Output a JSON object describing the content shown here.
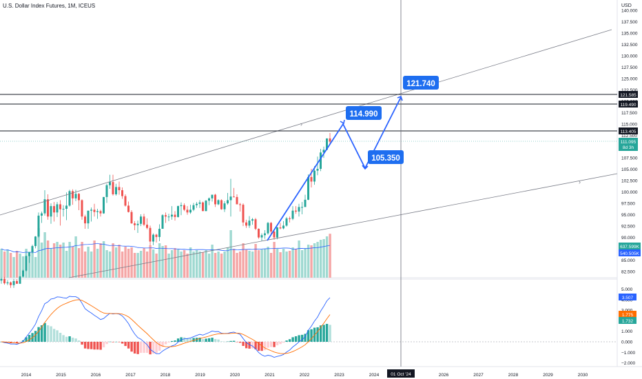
{
  "header": {
    "title": "U.S. Dollar Index Futures, 1M, ICEUS"
  },
  "price_axis": {
    "unit": "USD",
    "ticks": [
      "140.000",
      "137.500",
      "135.000",
      "132.500",
      "130.000",
      "127.500",
      "125.000",
      "122.500",
      "120.000",
      "117.500",
      "115.000",
      "112.500",
      "110.000",
      "107.500",
      "105.000",
      "102.500",
      "100.000",
      "97.500",
      "95.000",
      "92.500",
      "90.000",
      "87.500",
      "85.000",
      "82.500"
    ]
  },
  "osc_axis": {
    "ticks": [
      "5.000",
      "4.000",
      "3.000",
      "2.000",
      "1.000",
      "0.000",
      "−1.000",
      "−2.000"
    ]
  },
  "time_axis": {
    "labels": [
      "2014",
      "2015",
      "2016",
      "2017",
      "2018",
      "2019",
      "2020",
      "2021",
      "2022",
      "2023",
      "2024",
      "2026",
      "2027",
      "2028",
      "2029",
      "2030"
    ],
    "cursor_label": "01 Oct '24"
  },
  "level_labels": {
    "l1": "121.585",
    "l2": "119.490",
    "l3": "113.405",
    "last_price": "111.095",
    "countdown": "8d 3h",
    "vol1": "637.599K",
    "vol2": "540.505K",
    "macd1": "3.507",
    "macd2": "1.775",
    "macd3": "1.732"
  },
  "callouts": {
    "c1": "121.740",
    "c2": "114.990",
    "c3": "105.350"
  },
  "colors": {
    "up": "#26a69a",
    "down": "#ef5350",
    "up_vol": "#9fd9d1",
    "down_vol": "#f5a6a6",
    "accent": "#2962ff",
    "macd_line": "#2962ff",
    "signal_line": "#ff6d00",
    "hline": "#131722",
    "callout_bg": "#1e6ef0",
    "cursor_bg": "#131722",
    "last_bg": "#26a69a",
    "vol2_bg": "#2962ff",
    "signal_bg": "#ff6d00"
  },
  "chart_data": {
    "type": "candlestick",
    "months": 107,
    "start": "2014-01",
    "candles_ohlc": [
      [
        80.5,
        81.2,
        79.8,
        80.9
      ],
      [
        80.9,
        81.3,
        79.6,
        79.9
      ],
      [
        79.9,
        80.6,
        79.5,
        80.1
      ],
      [
        80.1,
        80.3,
        78.9,
        79.5
      ],
      [
        79.5,
        80.9,
        78.9,
        80.4
      ],
      [
        80.4,
        80.8,
        79.8,
        79.8
      ],
      [
        79.8,
        81.5,
        79.8,
        81.4
      ],
      [
        81.4,
        82.9,
        81.3,
        82.7
      ],
      [
        82.7,
        86.0,
        82.5,
        85.9
      ],
      [
        85.9,
        86.8,
        84.4,
        86.8
      ],
      [
        86.8,
        88.4,
        86.5,
        88.1
      ],
      [
        88.1,
        90.3,
        87.6,
        90.2
      ],
      [
        90.2,
        95.5,
        90.0,
        94.8
      ],
      [
        94.8,
        95.7,
        93.2,
        95.3
      ],
      [
        95.3,
        100.4,
        94.8,
        98.4
      ],
      [
        98.4,
        99.5,
        93.9,
        94.6
      ],
      [
        94.6,
        97.5,
        93.0,
        96.9
      ],
      [
        96.9,
        97.8,
        93.5,
        95.5
      ],
      [
        95.5,
        97.8,
        94.5,
        97.3
      ],
      [
        97.3,
        98.2,
        92.6,
        96.2
      ],
      [
        96.2,
        97.1,
        94.6,
        96.3
      ],
      [
        96.3,
        99.9,
        93.8,
        97.0
      ],
      [
        97.0,
        100.5,
        96.8,
        100.2
      ],
      [
        100.2,
        100.6,
        97.2,
        98.6
      ],
      [
        98.6,
        100.5,
        98.0,
        99.6
      ],
      [
        99.6,
        99.8,
        96.0,
        98.2
      ],
      [
        98.2,
        98.4,
        93.9,
        94.6
      ],
      [
        94.6,
        95.0,
        91.9,
        93.1
      ],
      [
        93.1,
        95.7,
        91.9,
        95.9
      ],
      [
        95.9,
        96.6,
        93.5,
        96.1
      ],
      [
        96.1,
        97.4,
        94.6,
        95.6
      ],
      [
        95.6,
        96.3,
        94.1,
        95.8
      ],
      [
        95.8,
        96.1,
        94.6,
        95.3
      ],
      [
        95.3,
        98.9,
        95.2,
        98.9
      ],
      [
        98.9,
        101.8,
        97.6,
        101.5
      ],
      [
        101.5,
        103.8,
        100.7,
        102.2
      ],
      [
        102.2,
        103.8,
        99.2,
        99.5
      ],
      [
        99.5,
        101.8,
        99.2,
        101.1
      ],
      [
        101.1,
        102.3,
        99.4,
        100.4
      ],
      [
        100.4,
        101.0,
        98.5,
        99.1
      ],
      [
        99.1,
        99.5,
        96.8,
        97.0
      ],
      [
        97.0,
        97.9,
        95.5,
        95.6
      ],
      [
        95.6,
        96.0,
        93.0,
        93.1
      ],
      [
        93.1,
        93.6,
        91.6,
        92.7
      ],
      [
        92.7,
        93.7,
        91.0,
        93.0
      ],
      [
        93.0,
        95.1,
        92.5,
        94.6
      ],
      [
        94.6,
        95.2,
        92.5,
        92.8
      ],
      [
        92.8,
        94.2,
        91.8,
        92.1
      ],
      [
        92.1,
        92.6,
        88.2,
        89.1
      ],
      [
        89.1,
        90.9,
        88.3,
        90.6
      ],
      [
        90.6,
        90.8,
        88.9,
        90.1
      ],
      [
        90.1,
        92.9,
        89.2,
        91.9
      ],
      [
        91.9,
        95.1,
        91.9,
        94.9
      ],
      [
        94.9,
        95.5,
        93.2,
        94.6
      ],
      [
        94.6,
        95.2,
        93.6,
        94.6
      ],
      [
        94.6,
        96.9,
        93.9,
        95.0
      ],
      [
        95.0,
        95.8,
        93.7,
        94.5
      ],
      [
        94.5,
        97.0,
        94.4,
        96.9
      ],
      [
        96.9,
        97.7,
        94.9,
        97.1
      ],
      [
        97.1,
        97.5,
        95.8,
        96.1
      ],
      [
        96.1,
        96.9,
        95.0,
        95.5
      ],
      [
        95.5,
        97.2,
        95.2,
        96.1
      ],
      [
        96.1,
        97.6,
        95.8,
        97.1
      ],
      [
        97.1,
        97.8,
        96.5,
        97.4
      ],
      [
        97.4,
        98.2,
        96.5,
        97.7
      ],
      [
        97.7,
        97.9,
        95.8,
        95.8
      ],
      [
        95.8,
        98.2,
        95.8,
        98.1
      ],
      [
        98.1,
        98.8,
        97.1,
        98.6
      ],
      [
        98.6,
        99.4,
        97.9,
        99.4
      ],
      [
        99.4,
        99.6,
        96.7,
        97.3
      ],
      [
        97.3,
        98.4,
        97.1,
        98.2
      ],
      [
        98.2,
        98.4,
        96.1,
        96.2
      ],
      [
        96.2,
        98.0,
        95.6,
        97.5
      ],
      [
        97.5,
        99.8,
        97.2,
        98.2
      ],
      [
        98.2,
        102.9,
        94.6,
        99.0
      ],
      [
        99.0,
        100.9,
        98.9,
        98.9
      ],
      [
        98.9,
        99.5,
        97.3,
        97.3
      ],
      [
        97.3,
        97.6,
        95.7,
        97.2
      ],
      [
        97.2,
        97.5,
        92.5,
        93.3
      ],
      [
        93.3,
        93.9,
        92.1,
        92.6
      ],
      [
        92.6,
        94.7,
        92.1,
        93.7
      ],
      [
        93.7,
        94.3,
        92.8,
        94.0
      ],
      [
        94.0,
        94.3,
        91.6,
        91.9
      ],
      [
        91.9,
        92.0,
        89.7,
        90.0
      ],
      [
        90.0,
        90.9,
        89.2,
        90.5
      ],
      [
        90.5,
        91.6,
        89.7,
        90.9
      ],
      [
        90.9,
        93.4,
        90.6,
        93.2
      ],
      [
        93.2,
        93.4,
        90.8,
        91.3
      ],
      [
        91.3,
        91.4,
        89.5,
        90.0
      ],
      [
        90.0,
        92.3,
        89.6,
        92.2
      ],
      [
        92.2,
        93.2,
        91.8,
        92.0
      ],
      [
        92.0,
        93.6,
        91.8,
        92.6
      ],
      [
        92.6,
        94.5,
        92.4,
        94.2
      ],
      [
        94.2,
        94.6,
        93.3,
        94.1
      ],
      [
        94.1,
        96.9,
        93.8,
        95.9
      ],
      [
        95.9,
        96.9,
        95.2,
        95.7
      ],
      [
        95.7,
        97.4,
        94.6,
        96.7
      ],
      [
        96.7,
        97.8,
        95.1,
        96.7
      ],
      [
        96.7,
        99.4,
        97.5,
        98.3
      ],
      [
        98.3,
        103.9,
        98.2,
        103.3
      ],
      [
        103.3,
        105.1,
        101.0,
        102.3
      ],
      [
        102.3,
        105.7,
        101.6,
        104.7
      ],
      [
        104.7,
        107.8,
        103.7,
        105.1
      ],
      [
        105.1,
        109.5,
        104.6,
        108.7
      ],
      [
        108.7,
        110.0,
        107.5,
        109.3
      ],
      [
        109.3,
        111.8,
        109.2,
        111.8
      ],
      [
        111.8,
        113.0,
        110.6,
        111.1
      ]
    ],
    "volume_k": [
      420,
      380,
      410,
      360,
      300,
      390,
      350,
      310,
      420,
      330,
      410,
      300,
      720,
      510,
      660,
      540,
      430,
      500,
      520,
      480,
      510,
      390,
      520,
      450,
      600,
      430,
      520,
      380,
      450,
      380,
      540,
      420,
      500,
      530,
      400,
      380,
      500,
      440,
      480,
      380,
      450,
      420,
      440,
      360,
      360,
      390,
      430,
      380,
      470,
      410,
      350,
      500,
      460,
      470,
      350,
      400,
      430,
      410,
      380,
      400,
      350,
      440,
      380,
      400,
      380,
      370,
      400,
      350,
      480,
      360,
      380,
      350,
      380,
      440,
      690,
      420,
      360,
      380,
      500,
      410,
      390,
      380,
      490,
      400,
      410,
      420,
      450,
      360,
      520,
      420,
      370,
      420,
      380,
      390,
      440,
      420,
      540,
      400,
      430,
      480,
      470,
      500,
      520,
      550,
      560,
      600,
      638
    ],
    "volume_ma_k": 540.505,
    "drawings": {
      "projection_points": [
        {
          "label": "",
          "value": 89.7,
          "date": "2021-01"
        },
        {
          "label": "114.990",
          "value": 114.99,
          "date": "2023-01"
        },
        {
          "label": "105.350",
          "value": 105.35,
          "date": "2023-10"
        },
        {
          "label": "121.740",
          "value": 121.74,
          "date": "2024-10"
        }
      ],
      "horizontal_levels": [
        121.585,
        119.49,
        113.405
      ]
    }
  }
}
